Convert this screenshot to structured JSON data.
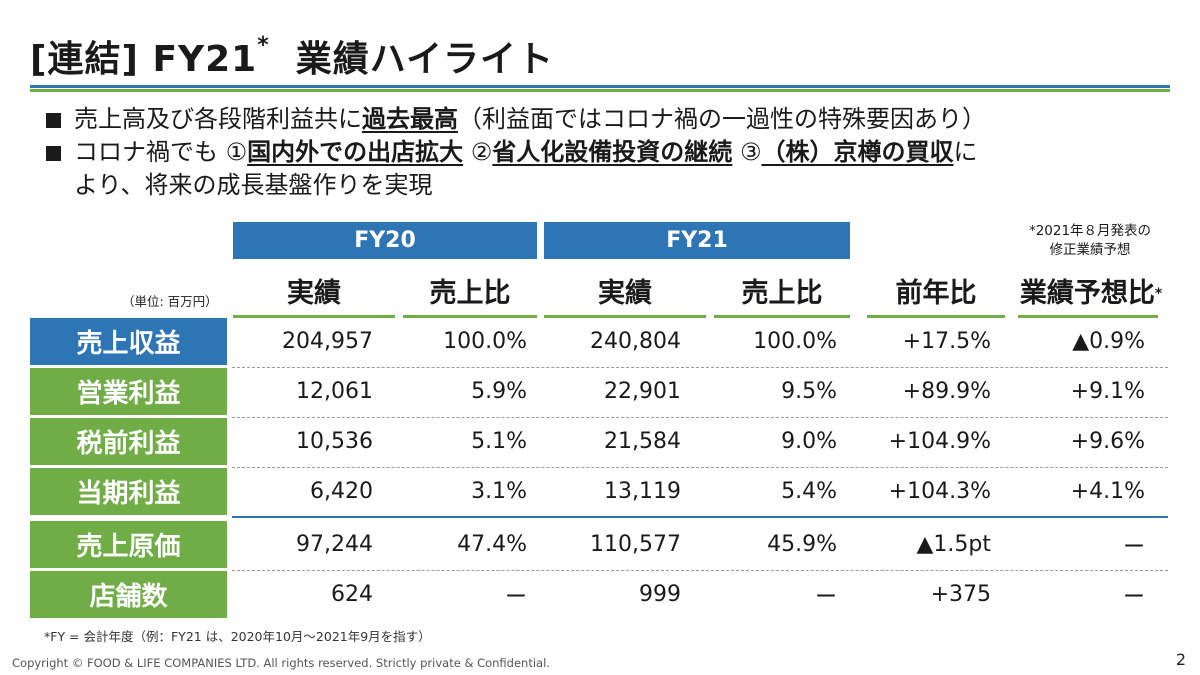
{
  "slide": {
    "title_prefix": "[連結] FY21",
    "title_mark": "*",
    "title_main": "業績ハイライト",
    "bullet1_a": "売上高及び各段階利益共に",
    "bullet1_b": "過去最高",
    "bullet1_c": "（利益面ではコロナ禍の一過性の特殊要因あり）",
    "bullet2_a": "コロナ禍でも ①",
    "bullet2_b": "国内外での出店拡大",
    "bullet2_c": " ②",
    "bullet2_d": "省人化設備投資の継続",
    "bullet2_e": " ③",
    "bullet2_f": "（株）京樽の買収",
    "bullet2_g": "に",
    "bullet2_line2": "より、将来の成長基盤作りを実現",
    "note_top_1": "*2021年８月発表の",
    "note_top_2": "修正業績予想",
    "unit": "（単位: 百万円）",
    "footnote": "*FY = 会計年度（例：FY21 は、2020年10月～2021年9月を指す）",
    "copyright": "Copyright © FOOD & LIFE COMPANIES LTD. All rights reserved. Strictly private & Confidential.",
    "page_number": "2"
  },
  "table": {
    "group_fy20": "FY20",
    "group_fy21": "FY21",
    "col_actual1": "実績",
    "col_ratio1": "売上比",
    "col_actual2": "実績",
    "col_ratio2": "売上比",
    "col_yoy": "前年比",
    "col_forecast": "業績予想比",
    "col_forecast_mark": "*",
    "rows": [
      {
        "label": "売上収益",
        "fy20": "204,957",
        "fy20r": "100.0%",
        "fy21": "240,804",
        "fy21r": "100.0%",
        "yoy": "+17.5%",
        "fc": "▲0.9%"
      },
      {
        "label": "営業利益",
        "fy20": "12,061",
        "fy20r": "5.9%",
        "fy21": "22,901",
        "fy21r": "9.5%",
        "yoy": "+89.9%",
        "fc": "+9.1%"
      },
      {
        "label": "税前利益",
        "fy20": "10,536",
        "fy20r": "5.1%",
        "fy21": "21,584",
        "fy21r": "9.0%",
        "yoy": "+104.9%",
        "fc": "+9.6%"
      },
      {
        "label": "当期利益",
        "fy20": "6,420",
        "fy20r": "3.1%",
        "fy21": "13,119",
        "fy21r": "5.4%",
        "yoy": "+104.3%",
        "fc": "+4.1%"
      },
      {
        "label": "売上原価",
        "fy20": "97,244",
        "fy20r": "47.4%",
        "fy21": "110,577",
        "fy21r": "45.9%",
        "yoy": "▲1.5pt",
        "fc": "ー"
      },
      {
        "label": "店舗数",
        "fy20": "624",
        "fy20r": "ー",
        "fy21": "999",
        "fy21r": "ー",
        "yoy": "+375",
        "fc": "ー"
      }
    ]
  },
  "colors": {
    "blue": "#2e75b6",
    "green": "#70ad47"
  }
}
